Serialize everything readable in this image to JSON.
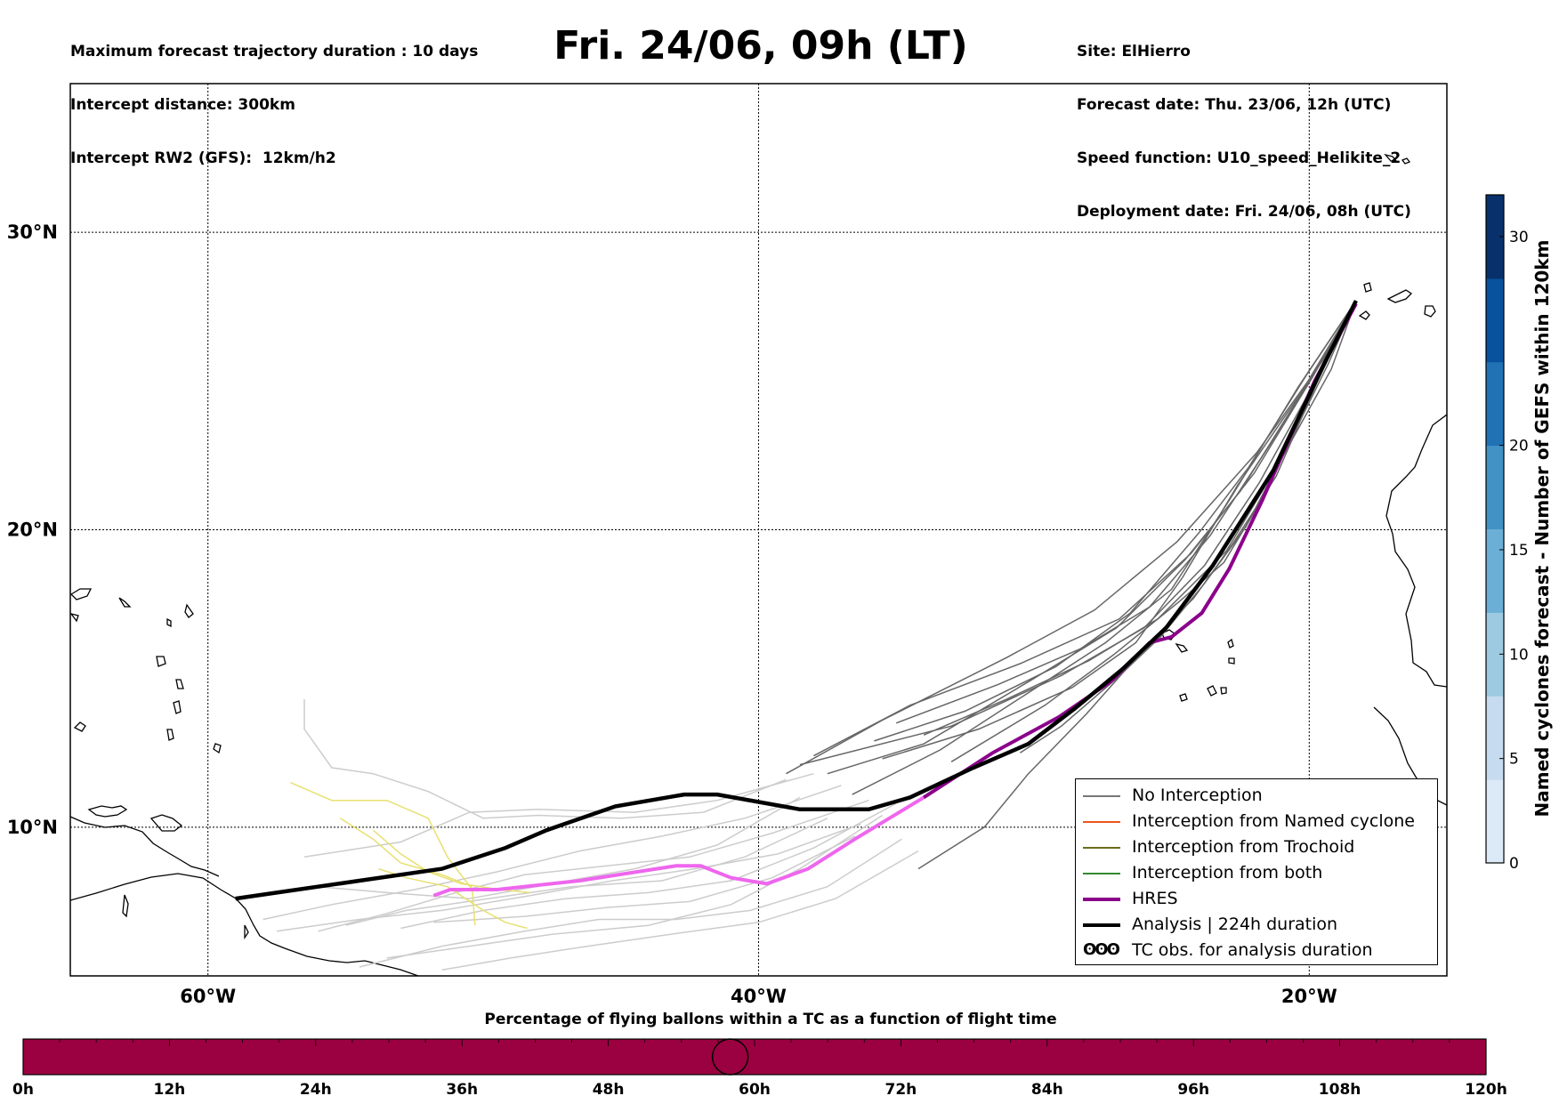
{
  "header": {
    "left_lines": [
      "Maximum forecast trajectory duration : 10 days",
      "Intercept distance: 300km",
      "Intercept RW2 (GFS):  12km/h2"
    ],
    "right_lines": [
      "Site: ElHierro",
      "Forecast date: Thu. 23/06, 12h (UTC)",
      "Speed function: U10_speed_Helikite_2",
      "Deployment date: Fri. 24/06, 08h (UTC)"
    ],
    "title": "Fri. 24/06, 09h (LT)"
  },
  "map": {
    "lat_range": [
      5.0,
      35.0
    ],
    "lon_range": [
      -65.0,
      -15.0
    ],
    "lat_ticks": [
      {
        "value": 10,
        "label": "10°N"
      },
      {
        "value": 20,
        "label": "20°N"
      },
      {
        "value": 30,
        "label": "30°N"
      }
    ],
    "lon_ticks": [
      {
        "value": -60,
        "label": "60°W"
      },
      {
        "value": -40,
        "label": "40°W"
      },
      {
        "value": -20,
        "label": "20°W"
      }
    ],
    "grid": "dotted",
    "launch_site": {
      "lon": -18.2,
      "lat": 27.7
    },
    "colors": {
      "no_interception": "#666666",
      "light_tracks": "#cccccc",
      "named_cyclone": "#e8571f",
      "trochoid": "#6b6b1a",
      "both": "#2e8b2e",
      "hres": "#8b008b",
      "hres_light": "#ee66ee",
      "analysis": "#000000",
      "yellow_tracks": "#e8e070",
      "coast": "#000000"
    }
  },
  "tracks": {
    "analysis": [
      [
        -18.3,
        27.7
      ],
      [
        -19.5,
        25.5
      ],
      [
        -21.3,
        22.0
      ],
      [
        -23.5,
        18.8
      ],
      [
        -25.2,
        16.7
      ],
      [
        -26.8,
        15.3
      ],
      [
        -28.5,
        14.0
      ],
      [
        -30.2,
        12.8
      ],
      [
        -32.2,
        12.0
      ],
      [
        -34.5,
        11.0
      ],
      [
        -36.0,
        10.6
      ],
      [
        -38.5,
        10.6
      ],
      [
        -41.5,
        11.1
      ],
      [
        -42.7,
        11.1
      ],
      [
        -45.2,
        10.7
      ],
      [
        -47.7,
        9.9
      ],
      [
        -49.2,
        9.3
      ],
      [
        -51.5,
        8.6
      ],
      [
        -54.5,
        8.2
      ],
      [
        -57.5,
        7.8
      ],
      [
        -59.0,
        7.6
      ]
    ],
    "hres": [
      [
        -18.3,
        27.6
      ],
      [
        -19.8,
        25.0
      ],
      [
        -21.7,
        21.0
      ],
      [
        -22.9,
        18.7
      ],
      [
        -23.9,
        17.2
      ],
      [
        -25.0,
        16.4
      ],
      [
        -25.8,
        16.2
      ],
      [
        -27.2,
        14.9
      ],
      [
        -29.1,
        13.7
      ],
      [
        -31.5,
        12.5
      ],
      [
        -34.0,
        11.0
      ]
    ],
    "hres_light": [
      [
        -34.0,
        11.0
      ],
      [
        -36.5,
        9.6
      ],
      [
        -38.2,
        8.6
      ],
      [
        -39.7,
        8.1
      ],
      [
        -41.0,
        8.3
      ],
      [
        -42.1,
        8.7
      ],
      [
        -43.0,
        8.7
      ],
      [
        -46.5,
        8.2
      ],
      [
        -49.5,
        7.9
      ],
      [
        -51.2,
        7.9
      ],
      [
        -51.8,
        7.7
      ]
    ],
    "ensemble": [
      [
        [
          -18.3,
          27.7
        ],
        [
          -20.0,
          25.0
        ],
        [
          -22.5,
          21.3
        ],
        [
          -24.5,
          19.0
        ],
        [
          -27.0,
          16.7
        ],
        [
          -30.0,
          15.0
        ],
        [
          -34.0,
          12.8
        ],
        [
          -37.5,
          11.8
        ]
      ],
      [
        [
          -18.3,
          27.7
        ],
        [
          -19.6,
          25.3
        ],
        [
          -21.8,
          21.6
        ],
        [
          -23.8,
          18.8
        ],
        [
          -26.0,
          16.7
        ],
        [
          -29.0,
          15.1
        ],
        [
          -33.0,
          13.4
        ],
        [
          -38.5,
          12.1
        ]
      ],
      [
        [
          -18.3,
          27.7
        ],
        [
          -19.2,
          25.4
        ],
        [
          -21.0,
          22.4
        ],
        [
          -23.0,
          19.3
        ],
        [
          -25.5,
          17.0
        ],
        [
          -28.0,
          15.6
        ],
        [
          -31.0,
          14.3
        ],
        [
          -34.0,
          13.1
        ]
      ],
      [
        [
          -18.3,
          27.7
        ],
        [
          -20.3,
          24.6
        ],
        [
          -22.6,
          21.5
        ],
        [
          -24.6,
          18.4
        ],
        [
          -26.3,
          16.2
        ],
        [
          -28.6,
          14.7
        ],
        [
          -32.0,
          13.3
        ],
        [
          -35.5,
          12.3
        ]
      ],
      [
        [
          -18.3,
          27.7
        ],
        [
          -19.4,
          25.9
        ],
        [
          -21.4,
          22.9
        ],
        [
          -23.6,
          19.8
        ],
        [
          -25.8,
          17.4
        ],
        [
          -28.3,
          16.0
        ],
        [
          -31.3,
          14.8
        ],
        [
          -35.0,
          13.5
        ]
      ],
      [
        [
          -18.3,
          27.7
        ],
        [
          -19.8,
          24.8
        ],
        [
          -21.6,
          21.2
        ],
        [
          -23.1,
          18.9
        ],
        [
          -24.7,
          17.6
        ],
        [
          -27.1,
          15.8
        ],
        [
          -29.6,
          14.1
        ],
        [
          -33.0,
          12.2
        ]
      ],
      [
        [
          -18.3,
          27.7
        ],
        [
          -20.1,
          25.2
        ],
        [
          -22.2,
          22.1
        ],
        [
          -24.0,
          19.9
        ],
        [
          -26.5,
          17.2
        ],
        [
          -29.2,
          15.4
        ],
        [
          -32.5,
          13.9
        ],
        [
          -35.8,
          12.9
        ]
      ],
      [
        [
          -18.3,
          27.7
        ],
        [
          -19.7,
          25.0
        ],
        [
          -21.2,
          21.8
        ],
        [
          -22.8,
          19.5
        ],
        [
          -24.2,
          17.7
        ],
        [
          -25.9,
          16.1
        ],
        [
          -28.1,
          13.8
        ],
        [
          -30.2,
          11.8
        ],
        [
          -31.8,
          10.0
        ],
        [
          -34.2,
          8.6
        ]
      ],
      [
        [
          -18.3,
          27.7
        ],
        [
          -19.9,
          25.1
        ],
        [
          -22.0,
          21.9
        ],
        [
          -24.3,
          19.2
        ],
        [
          -26.9,
          17.0
        ],
        [
          -30.5,
          15.5
        ],
        [
          -34.5,
          14.1
        ],
        [
          -38.0,
          12.4
        ]
      ],
      [
        [
          -18.3,
          27.7
        ],
        [
          -19.5,
          25.7
        ],
        [
          -21.9,
          22.6
        ],
        [
          -24.8,
          19.6
        ],
        [
          -27.8,
          17.3
        ],
        [
          -31.0,
          15.7
        ],
        [
          -35.5,
          13.6
        ],
        [
          -39.0,
          11.8
        ]
      ],
      [
        [
          -18.3,
          27.7
        ],
        [
          -20.4,
          24.8
        ],
        [
          -22.9,
          21.0
        ],
        [
          -25.0,
          18.0
        ],
        [
          -27.4,
          16.2
        ],
        [
          -30.4,
          14.4
        ],
        [
          -33.4,
          12.6
        ],
        [
          -36.6,
          11.1
        ]
      ],
      [
        [
          -18.3,
          27.7
        ],
        [
          -19.3,
          25.6
        ],
        [
          -20.9,
          22.6
        ],
        [
          -22.3,
          20.1
        ],
        [
          -23.8,
          18.2
        ],
        [
          -25.4,
          16.4
        ],
        [
          -27.0,
          15.0
        ],
        [
          -29.0,
          13.4
        ],
        [
          -30.5,
          12.5
        ]
      ]
    ],
    "light_ensemble": [
      [
        [
          -35.0,
          10.8
        ],
        [
          -38.0,
          9.3
        ],
        [
          -41.0,
          8.2
        ],
        [
          -44.0,
          7.8
        ],
        [
          -47.0,
          7.6
        ],
        [
          -50.0,
          7.2
        ],
        [
          -53.0,
          6.6
        ]
      ],
      [
        [
          -36.0,
          10.9
        ],
        [
          -39.5,
          9.8
        ],
        [
          -42.5,
          9.0
        ],
        [
          -45.5,
          8.7
        ],
        [
          -48.5,
          8.4
        ],
        [
          -51.0,
          7.8
        ],
        [
          -53.5,
          7.1
        ],
        [
          -56.0,
          6.5
        ]
      ],
      [
        [
          -35.5,
          10.4
        ],
        [
          -38.5,
          8.6
        ],
        [
          -41.0,
          7.4
        ],
        [
          -44.0,
          6.7
        ],
        [
          -47.5,
          6.4
        ],
        [
          -50.5,
          6.0
        ],
        [
          -53.5,
          5.6
        ]
      ],
      [
        [
          -37.0,
          11.4
        ],
        [
          -40.5,
          10.3
        ],
        [
          -43.5,
          9.7
        ],
        [
          -46.5,
          9.2
        ],
        [
          -49.5,
          8.5
        ],
        [
          -52.5,
          7.9
        ],
        [
          -55.5,
          7.4
        ],
        [
          -58.0,
          6.9
        ]
      ],
      [
        [
          -38.0,
          11.8
        ],
        [
          -41.5,
          10.9
        ],
        [
          -44.5,
          10.5
        ],
        [
          -48.0,
          10.6
        ],
        [
          -50.5,
          10.5
        ],
        [
          -53.0,
          9.5
        ],
        [
          -56.5,
          9.0
        ]
      ],
      [
        [
          -34.2,
          9.2
        ],
        [
          -37.2,
          7.6
        ],
        [
          -40.0,
          6.8
        ],
        [
          -43.2,
          6.4
        ],
        [
          -46.2,
          6.0
        ],
        [
          -49.0,
          5.6
        ],
        [
          -51.5,
          5.2
        ]
      ],
      [
        [
          -36.5,
          9.7
        ],
        [
          -39.5,
          8.3
        ],
        [
          -42.5,
          7.5
        ],
        [
          -45.5,
          7.3
        ],
        [
          -48.5,
          7.0
        ],
        [
          -51.8,
          6.8
        ]
      ],
      [
        [
          -37.5,
          10.3
        ],
        [
          -40.5,
          9.0
        ],
        [
          -43.5,
          8.2
        ],
        [
          -46.8,
          8.0
        ],
        [
          -49.8,
          7.6
        ],
        [
          -52.8,
          7.2
        ],
        [
          -55.0,
          6.7
        ]
      ],
      [
        [
          -39.0,
          11.6
        ],
        [
          -42.0,
          10.5
        ],
        [
          -45.0,
          10.3
        ],
        [
          -48.0,
          10.4
        ],
        [
          -50.0,
          10.3
        ],
        [
          -52.0,
          11.2
        ],
        [
          -54.0,
          11.8
        ],
        [
          -55.5,
          12.0
        ],
        [
          -56.5,
          13.3
        ],
        [
          -56.5,
          14.3
        ]
      ],
      [
        [
          -34.8,
          9.6
        ],
        [
          -37.5,
          8.0
        ],
        [
          -40.3,
          7.2
        ],
        [
          -43.0,
          6.9
        ],
        [
          -45.8,
          6.9
        ],
        [
          -48.5,
          6.5
        ],
        [
          -51.5,
          6.0
        ],
        [
          -54.5,
          5.3
        ]
      ],
      [
        [
          -36.3,
          10.1
        ],
        [
          -39.3,
          9.1
        ],
        [
          -42.3,
          8.6
        ],
        [
          -45.3,
          8.2
        ],
        [
          -48.3,
          7.7
        ],
        [
          -51.5,
          7.2
        ],
        [
          -54.5,
          6.9
        ],
        [
          -57.5,
          6.5
        ]
      ],
      [
        [
          -38.5,
          11.0
        ],
        [
          -41.5,
          9.4
        ],
        [
          -44.5,
          8.6
        ],
        [
          -47.5,
          8.1
        ],
        [
          -50.5,
          7.6
        ],
        [
          -53.5,
          7.8
        ],
        [
          -56.0,
          8.0
        ]
      ]
    ],
    "yellow": [
      [
        [
          -57.0,
          11.5
        ],
        [
          -55.5,
          10.9
        ],
        [
          -53.5,
          10.9
        ],
        [
          -52.0,
          10.3
        ],
        [
          -51.3,
          9.0
        ],
        [
          -50.4,
          7.9
        ],
        [
          -50.3,
          6.7
        ]
      ],
      [
        [
          -55.2,
          10.3
        ],
        [
          -54.0,
          9.6
        ],
        [
          -53.0,
          8.8
        ],
        [
          -51.5,
          8.4
        ],
        [
          -50.4,
          8.0
        ]
      ],
      [
        [
          -54.0,
          9.9
        ],
        [
          -53.0,
          9.1
        ],
        [
          -52.0,
          8.5
        ],
        [
          -50.8,
          8.1
        ],
        [
          -49.4,
          7.9
        ],
        [
          -48.3,
          7.8
        ]
      ],
      [
        [
          -53.8,
          8.6
        ],
        [
          -52.8,
          8.3
        ],
        [
          -51.3,
          8.0
        ],
        [
          -50.0,
          7.2
        ],
        [
          -49.2,
          6.8
        ],
        [
          -48.4,
          6.6
        ]
      ]
    ]
  },
  "legend": [
    {
      "key": "no_interception",
      "label": "No Interception",
      "color": "#777777",
      "width": 1.2
    },
    {
      "key": "named_cyclone",
      "label": "Interception from Named cyclone",
      "color": "#e8571f",
      "width": 1.2
    },
    {
      "key": "trochoid",
      "label": "Interception from Trochoid",
      "color": "#6b6b1a",
      "width": 1.2
    },
    {
      "key": "both",
      "label": "Interception from both",
      "color": "#2e8b2e",
      "width": 1.2
    },
    {
      "key": "hres",
      "label": "HRES",
      "color": "#8b008b",
      "width": 4
    },
    {
      "key": "analysis",
      "label": "Analysis | 224h duration",
      "color": "#000000",
      "width": 4
    },
    {
      "key": "tc_obs",
      "label": "TC obs. for analysis duration",
      "symbol": "ʘʘʘ"
    }
  ],
  "colorbar": {
    "label": "Named cyclones forecast - Number of GEFS within 120km",
    "min": 0,
    "max": 32,
    "ticks": [
      0,
      5,
      10,
      15,
      20,
      30
    ],
    "colors": [
      "#dce9f6",
      "#c6dbef",
      "#9ecae1",
      "#6baed6",
      "#4292c6",
      "#2171b5",
      "#08519c",
      "#08306b"
    ]
  },
  "timebar": {
    "title": "Percentage of flying ballons within a TC as a function of flight time",
    "tick_labels": [
      "0h",
      "12h",
      "24h",
      "36h",
      "48h",
      "60h",
      "72h",
      "84h",
      "96h",
      "108h",
      "120h"
    ],
    "max_hours": 120,
    "fill_color": "#9b0040",
    "marker_hours": 58
  }
}
